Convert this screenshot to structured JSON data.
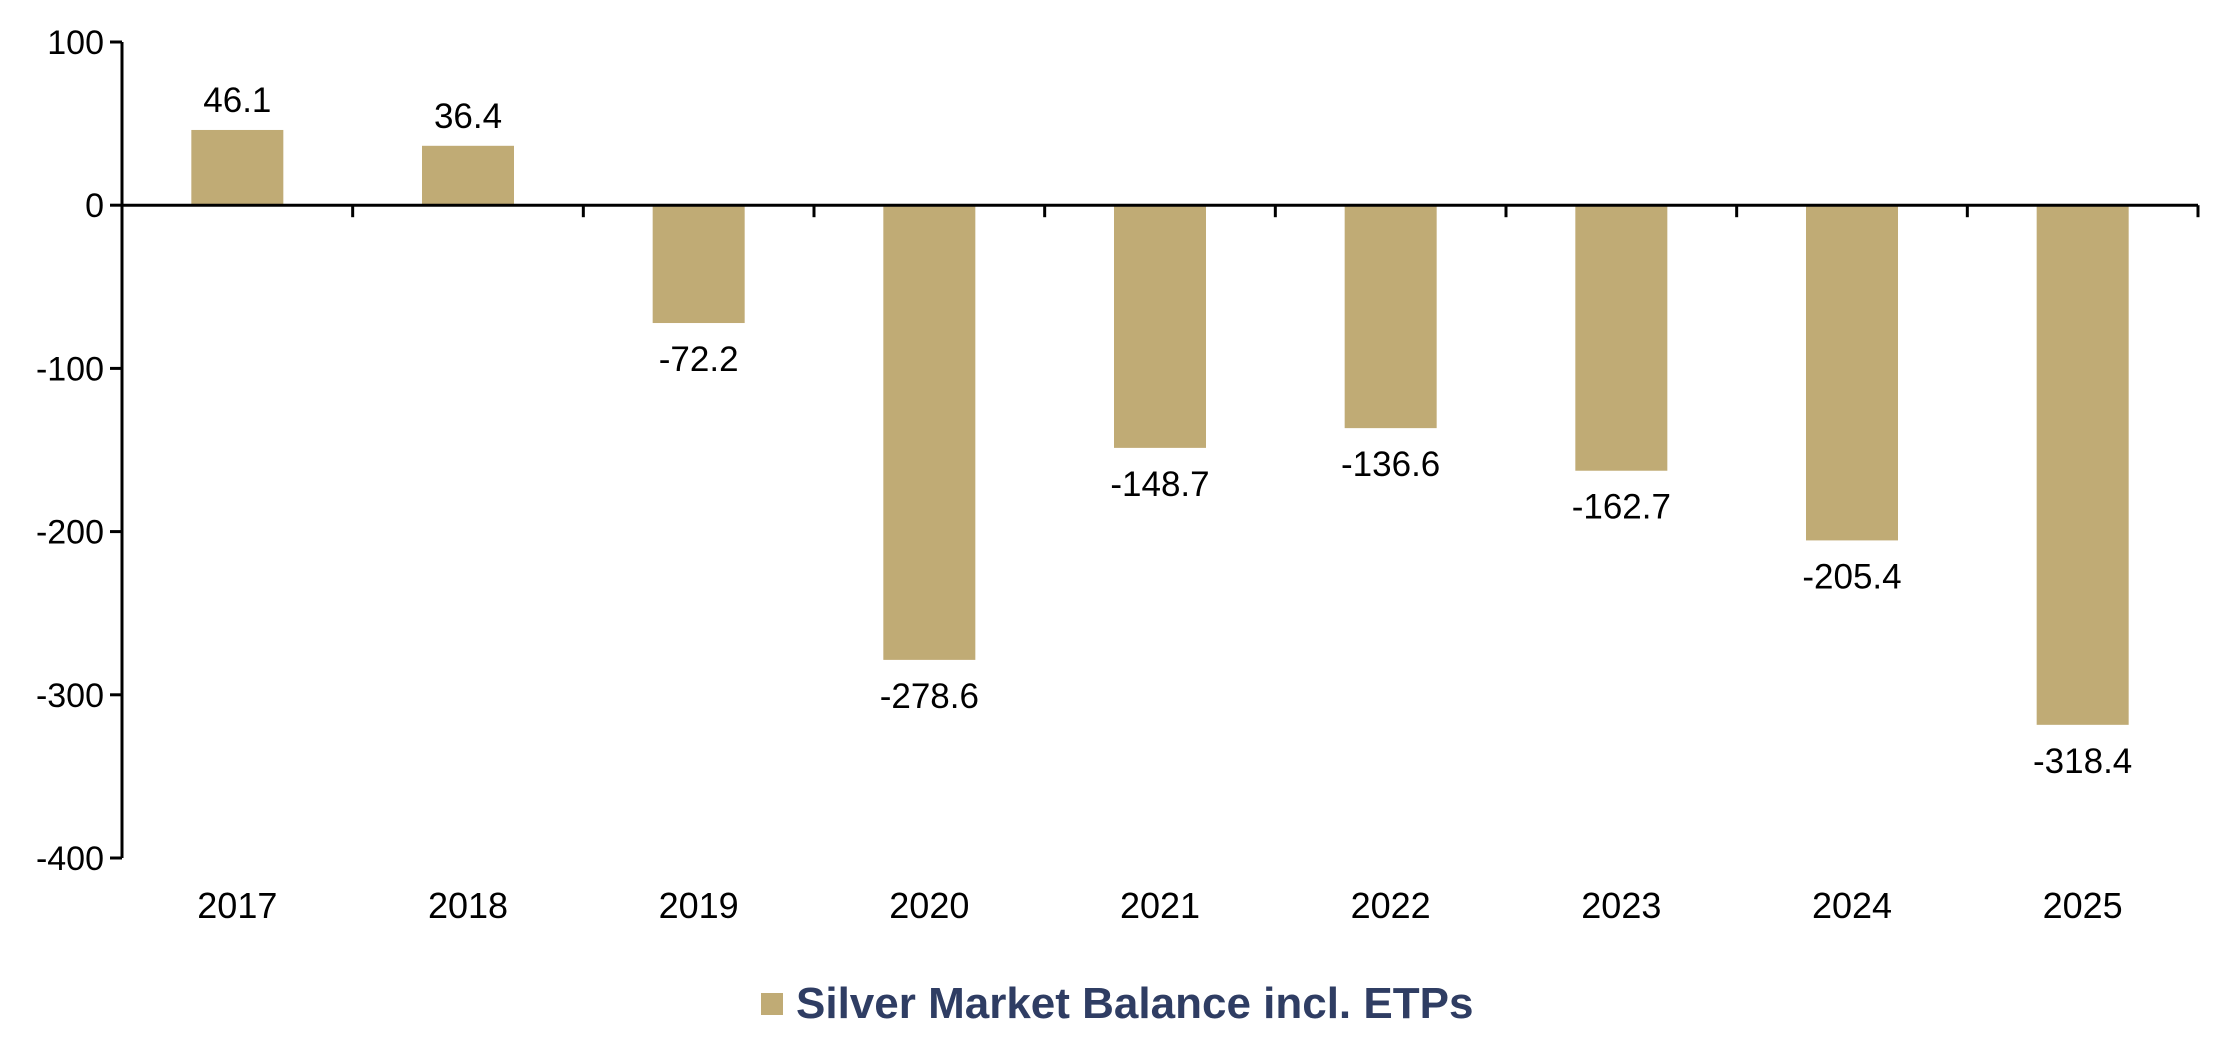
{
  "chart_data": {
    "type": "bar",
    "categories": [
      "2017",
      "2018",
      "2019",
      "2020",
      "2021",
      "2022",
      "2023",
      "2024",
      "2025"
    ],
    "series": [
      {
        "name": "Silver Market Balance incl. ETPs",
        "values": [
          46.1,
          36.4,
          -72.2,
          -278.6,
          -148.7,
          -136.6,
          -162.7,
          -205.4,
          -318.4
        ],
        "labels": [
          "46.1",
          "36.4",
          "-72.2",
          "-278.6",
          "-148.7",
          "-136.6",
          "-162.7",
          "-205.4",
          "-318.4"
        ]
      }
    ],
    "ylim": [
      -400,
      100
    ],
    "yticks": [
      100,
      0,
      -100,
      -200,
      -300,
      -400
    ],
    "ytick_labels": [
      "100",
      "0",
      "-100",
      "-200",
      "-300",
      "-400"
    ],
    "title": "",
    "xlabel": "",
    "ylabel": "",
    "grid": false,
    "legend_position": "bottom-center"
  },
  "colors": {
    "bar": "#c0ab75",
    "axis": "#000000",
    "legend_text": "#2f3d63"
  }
}
